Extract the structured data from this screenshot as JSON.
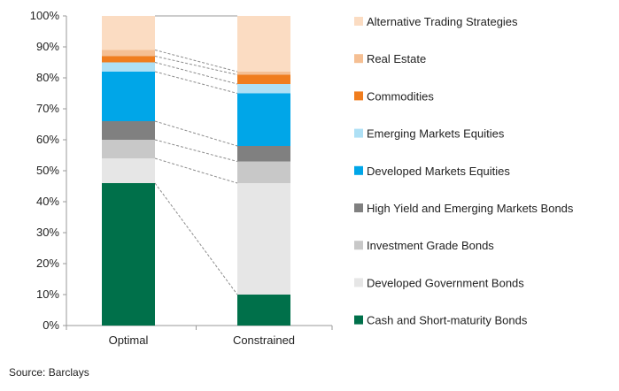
{
  "chart_data": {
    "type": "bar",
    "stacked": true,
    "categories": [
      "Optimal",
      "Constrained"
    ],
    "ylim": [
      0,
      100
    ],
    "yticks": [
      "0%",
      "10%",
      "20%",
      "30%",
      "40%",
      "50%",
      "60%",
      "70%",
      "80%",
      "90%",
      "100%"
    ],
    "grid": false,
    "legend_position": "right",
    "series": [
      {
        "name": "Cash and Short-maturity Bonds",
        "color": "#00704A",
        "values": [
          46,
          10
        ]
      },
      {
        "name": "Developed Government Bonds",
        "color": "#E6E6E6",
        "values": [
          8,
          36
        ]
      },
      {
        "name": "Investment Grade Bonds",
        "color": "#C8C8C8",
        "values": [
          6,
          7
        ]
      },
      {
        "name": "High Yield and Emerging Markets Bonds",
        "color": "#808080",
        "values": [
          6,
          5
        ]
      },
      {
        "name": "Developed Markets Equities",
        "color": "#00A6E8",
        "values": [
          16,
          17
        ]
      },
      {
        "name": "Emerging Markets Equities",
        "color": "#AEE0F5",
        "values": [
          3,
          3
        ]
      },
      {
        "name": "Commodities",
        "color": "#F07D1E",
        "values": [
          2,
          3
        ]
      },
      {
        "name": "Real Estate",
        "color": "#F5BF93",
        "values": [
          2,
          1
        ]
      },
      {
        "name": "Alternative Trading Strategies",
        "color": "#FBDCC2",
        "values": [
          11,
          18
        ]
      }
    ]
  },
  "source": "Source: Barclays"
}
